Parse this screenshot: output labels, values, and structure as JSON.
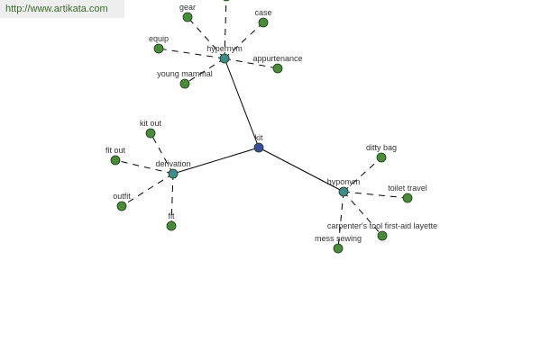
{
  "watermark": "http://www.artikata.com",
  "colors": {
    "root": "#3b4c9b",
    "relation": "#3e8c8c",
    "leaf": "#4a8a3a",
    "edge": "#000000"
  },
  "graph": {
    "root": "kit",
    "relations": [
      {
        "label": "hypernym",
        "children": [
          "",
          "gear",
          "case",
          "equip",
          "appurtenance",
          "young mammal"
        ]
      },
      {
        "label": "derivation",
        "children": [
          "kit out",
          "fit out",
          "outfit",
          "fit"
        ]
      },
      {
        "label": "hyponym",
        "children": [
          "ditty bag",
          "toilet travel",
          "carpenter's tool first-aid layette",
          "mess sewing"
        ]
      }
    ]
  }
}
